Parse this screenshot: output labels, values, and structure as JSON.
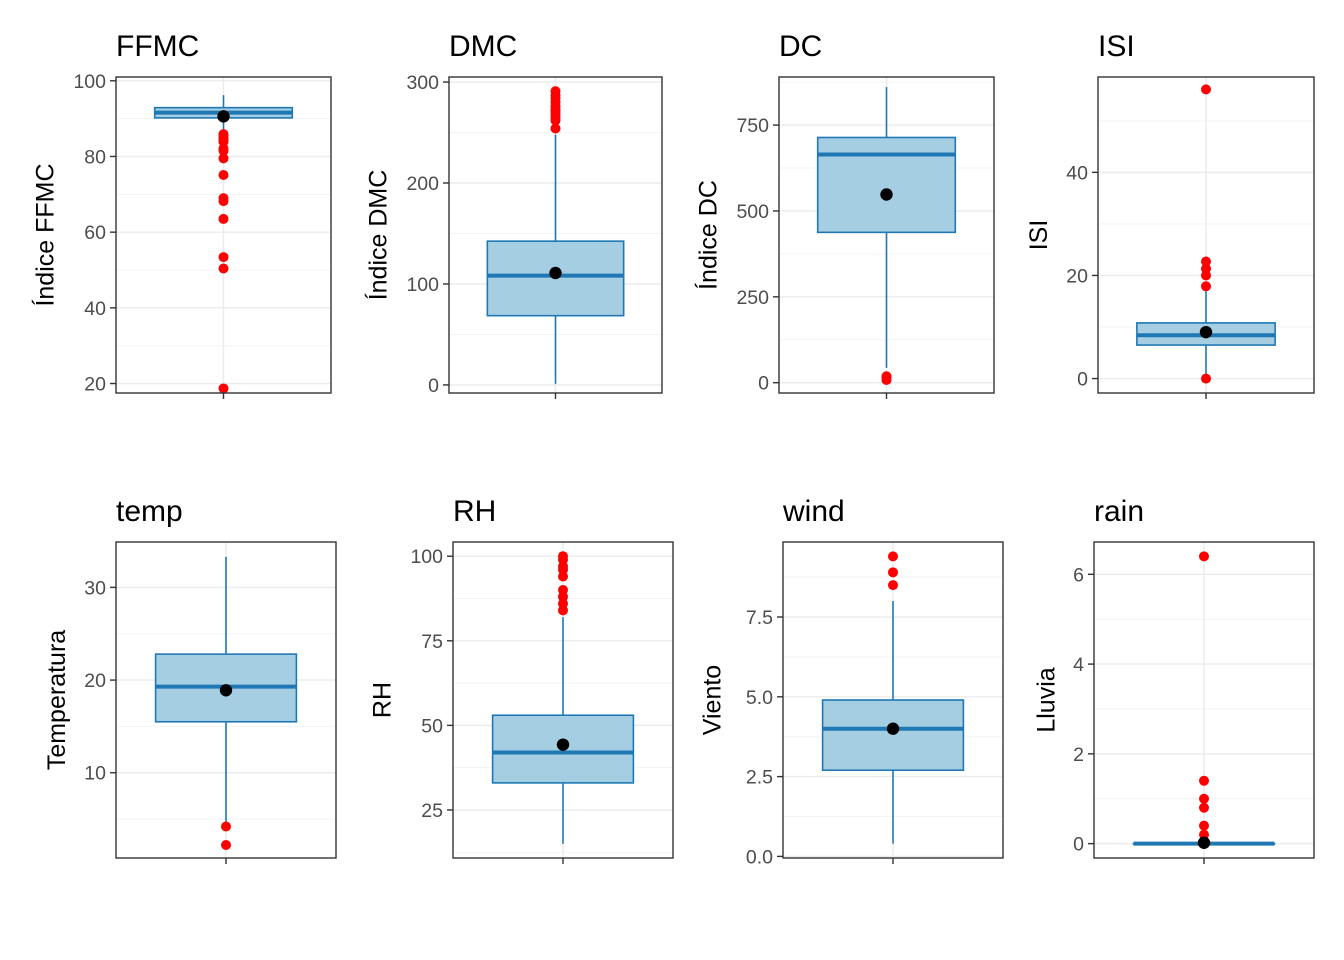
{
  "colors": {
    "box_fill": "#a6cee3",
    "box_line": "#1f78b4",
    "outlier": "#ff0000",
    "mean": "#000000",
    "grid_major": "#ebebeb",
    "grid_minor": "#f3f3f3",
    "panel_border": "#333333",
    "tick_text": "#4d4d4d"
  },
  "chart_data": [
    {
      "type": "boxplot",
      "title": "FFMC",
      "ylabel": "Índice FFMC",
      "ylim": [
        17.5,
        101
      ],
      "yticks": [
        20,
        40,
        60,
        80,
        100
      ],
      "tick_labels": [
        "20",
        "40",
        "60",
        "80",
        "100"
      ],
      "box": {
        "whisker_low": 86.3,
        "q1": 90.2,
        "median": 91.6,
        "q3": 92.9,
        "whisker_high": 96.2
      },
      "mean": 90.6,
      "outliers": [
        85.9,
        85.6,
        85.1,
        84.6,
        84.2,
        83.9,
        82.1,
        81.5,
        79.5,
        75.1,
        69.0,
        68.2,
        63.5,
        53.4,
        50.4,
        18.7
      ]
    },
    {
      "type": "boxplot",
      "title": "DMC",
      "ylabel": "Índice DMC",
      "ylim": [
        -8,
        305
      ],
      "yticks": [
        0,
        100,
        200,
        300
      ],
      "tick_labels": [
        "0",
        "100",
        "200",
        "300"
      ],
      "box": {
        "whisker_low": 1.1,
        "q1": 68.6,
        "median": 108.3,
        "q3": 142.4,
        "whisker_high": 248.0
      },
      "mean": 110.9,
      "outliers": [
        254.0,
        262.0,
        265.0,
        268.0,
        271.0,
        273.0,
        276.0,
        280.0,
        284.0,
        287.0,
        291.0
      ]
    },
    {
      "type": "boxplot",
      "title": "DC",
      "ylabel": "Índice DC",
      "ylim": [
        -30,
        890
      ],
      "yticks": [
        0,
        250,
        500,
        750
      ],
      "tick_labels": [
        "0",
        "250",
        "500",
        "750"
      ],
      "box": {
        "whisker_low": 43,
        "q1": 437.7,
        "median": 664.2,
        "q3": 713.9,
        "whisker_high": 860.6
      },
      "mean": 547.9,
      "outliers": [
        7.9,
        15.3,
        18.7
      ]
    },
    {
      "type": "boxplot",
      "title": "ISI",
      "ylabel": "ISI",
      "ylim": [
        -2.8,
        58.5
      ],
      "yticks": [
        0,
        20,
        40
      ],
      "tick_labels": [
        "0",
        "20",
        "40"
      ],
      "box": {
        "whisker_low": 0.4,
        "q1": 6.5,
        "median": 8.4,
        "q3": 10.8,
        "whisker_high": 17.0
      },
      "mean": 9.0,
      "outliers": [
        0.0,
        17.9,
        20.0,
        21.3,
        22.7,
        56.1
      ]
    },
    {
      "type": "boxplot",
      "title": "temp",
      "ylabel": "Temperatura",
      "ylim": [
        0.8,
        34.9
      ],
      "yticks": [
        10,
        20,
        30
      ],
      "tick_labels": [
        "10",
        "20",
        "30"
      ],
      "box": {
        "whisker_low": 4.6,
        "q1": 15.5,
        "median": 19.3,
        "q3": 22.8,
        "whisker_high": 33.3
      },
      "mean": 18.9,
      "outliers": [
        2.2,
        4.2
      ]
    },
    {
      "type": "boxplot",
      "title": "RH",
      "ylabel": "RH",
      "ylim": [
        10.8,
        104.2
      ],
      "yticks": [
        25,
        50,
        75,
        100
      ],
      "tick_labels": [
        "25",
        "50",
        "75",
        "100"
      ],
      "box": {
        "whisker_low": 15,
        "q1": 33,
        "median": 42,
        "q3": 53,
        "whisker_high": 82
      },
      "mean": 44.3,
      "outliers": [
        84,
        86,
        88,
        90,
        94,
        96,
        97,
        99,
        100
      ]
    },
    {
      "type": "boxplot",
      "title": "wind",
      "ylabel": "Viento",
      "ylim": [
        -0.05,
        9.85
      ],
      "yticks": [
        0.0,
        2.5,
        5.0,
        7.5
      ],
      "tick_labels": [
        "0.0",
        "2.5",
        "5.0",
        "7.5"
      ],
      "box": {
        "whisker_low": 0.4,
        "q1": 2.7,
        "median": 4.0,
        "q3": 4.9,
        "whisker_high": 8.0
      },
      "mean": 4.0,
      "outliers": [
        8.5,
        8.9,
        9.4
      ]
    },
    {
      "type": "boxplot",
      "title": "rain",
      "ylabel": "Lluvia",
      "ylim": [
        -0.32,
        6.72
      ],
      "yticks": [
        0,
        2,
        4,
        6
      ],
      "tick_labels": [
        "0",
        "2",
        "4",
        "6"
      ],
      "box": {
        "whisker_low": 0.0,
        "q1": 0.0,
        "median": 0.0,
        "q3": 0.0,
        "whisker_high": 0.0
      },
      "mean": 0.02,
      "outliers": [
        0.2,
        0.4,
        0.8,
        1.0,
        1.4,
        6.4
      ]
    }
  ]
}
